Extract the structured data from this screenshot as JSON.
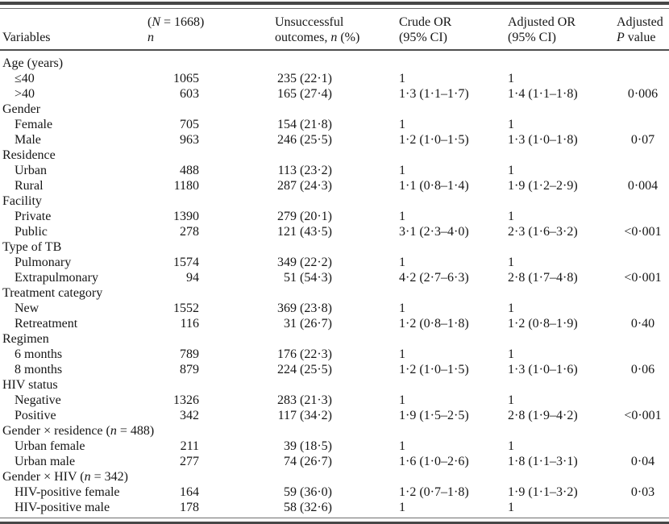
{
  "header": {
    "variables": "Variables",
    "n_total": {
      "pre": "(",
      "n_italic": "N",
      "post": " = 1668)",
      "line2": "n"
    },
    "outcomes": {
      "line1": "Unsuccessful",
      "line2_pre": "outcomes, ",
      "line2_italic": "n",
      "line2_post": " (%)"
    },
    "crude_or": {
      "line1": "Crude OR",
      "line2": "(95% CI)"
    },
    "adjusted_or": {
      "line1": "Adjusted OR",
      "line2": "(95% CI)"
    },
    "p_value": {
      "line1": "Adjusted",
      "line2_italic": "P",
      "line2_post": " value"
    }
  },
  "rows": [
    {
      "type": "section",
      "label": "Age (years)"
    },
    {
      "type": "item",
      "label": "≤40",
      "n": "1065",
      "outcomes": "235 (22·1)",
      "crude": "1",
      "adjusted": "1",
      "p": ""
    },
    {
      "type": "item",
      "label": ">40",
      "n": "603",
      "outcomes": "165 (27·4)",
      "crude": "1·3 (1·1–1·7)",
      "adjusted": "1·4 (1·1–1·8)",
      "p": "0·006"
    },
    {
      "type": "section",
      "label": "Gender"
    },
    {
      "type": "item",
      "label": "Female",
      "n": "705",
      "outcomes": "154 (21·8)",
      "crude": "1",
      "adjusted": "1",
      "p": ""
    },
    {
      "type": "item",
      "label": "Male",
      "n": "963",
      "outcomes": "246 (25·5)",
      "crude": "1·2 (1·0–1·5)",
      "adjusted": "1·3 (1·0–1·8)",
      "p": "0·07"
    },
    {
      "type": "section",
      "label": "Residence"
    },
    {
      "type": "item",
      "label": "Urban",
      "n": "488",
      "outcomes": "113 (23·2)",
      "crude": "1",
      "adjusted": "1",
      "p": ""
    },
    {
      "type": "item",
      "label": "Rural",
      "n": "1180",
      "outcomes": "287 (24·3)",
      "crude": "1·1 (0·8–1·4)",
      "adjusted": "1·9 (1·2–2·9)",
      "p": "0·004"
    },
    {
      "type": "section",
      "label": "Facility"
    },
    {
      "type": "item",
      "label": "Private",
      "n": "1390",
      "outcomes": "279 (20·1)",
      "crude": "1",
      "adjusted": "1",
      "p": ""
    },
    {
      "type": "item",
      "label": "Public",
      "n": "278",
      "outcomes": "121 (43·5)",
      "crude": "3·1 (2·3–4·0)",
      "adjusted": "2·3 (1·6–3·2)",
      "p": "<0·001"
    },
    {
      "type": "section",
      "label": "Type of TB"
    },
    {
      "type": "item",
      "label": "Pulmonary",
      "n": "1574",
      "outcomes": "349 (22·2)",
      "crude": "1",
      "adjusted": "1",
      "p": ""
    },
    {
      "type": "item",
      "label": "Extrapulmonary",
      "n": "94",
      "outcomes": "51 (54·3)",
      "crude": "4·2 (2·7–6·3)",
      "adjusted": "2·8 (1·7–4·8)",
      "p": "<0·001"
    },
    {
      "type": "section",
      "label": "Treatment category"
    },
    {
      "type": "item",
      "label": "New",
      "n": "1552",
      "outcomes": "369 (23·8)",
      "crude": "1",
      "adjusted": "1",
      "p": ""
    },
    {
      "type": "item",
      "label": "Retreatment",
      "n": "116",
      "outcomes": "31 (26·7)",
      "crude": "1·2 (0·8–1·8)",
      "adjusted": "1·2 (0·8–1·9)",
      "p": "0·40"
    },
    {
      "type": "section",
      "label": "Regimen"
    },
    {
      "type": "item",
      "label": "6 months",
      "n": "789",
      "outcomes": "176 (22·3)",
      "crude": "1",
      "adjusted": "1",
      "p": ""
    },
    {
      "type": "item",
      "label": "8 months",
      "n": "879",
      "outcomes": "224 (25·5)",
      "crude": "1·2 (1·0–1·5)",
      "adjusted": "1·3 (1·0–1·6)",
      "p": "0·06"
    },
    {
      "type": "section",
      "label": "HIV status"
    },
    {
      "type": "item",
      "label": "Negative",
      "n": "1326",
      "outcomes": "283 (21·3)",
      "crude": "1",
      "adjusted": "1",
      "p": ""
    },
    {
      "type": "item",
      "label": "Positive",
      "n": "342",
      "outcomes": "117 (34·2)",
      "crude": "1·9 (1·5–2·5)",
      "adjusted": "2·8 (1·9–4·2)",
      "p": "<0·001"
    },
    {
      "type": "section",
      "label_pre": "Gender × residence (",
      "label_it": "n",
      "label_post": " = 488)"
    },
    {
      "type": "item",
      "label": "Urban female",
      "n": "211",
      "outcomes": "39 (18·5)",
      "crude": "1",
      "adjusted": "1",
      "p": ""
    },
    {
      "type": "item",
      "label": "Urban male",
      "n": "277",
      "outcomes": "74 (26·7)",
      "crude": "1·6 (1·0–2·6)",
      "adjusted": "1·8 (1·1–3·1)",
      "p": "0·04"
    },
    {
      "type": "section",
      "label_pre": "Gender × HIV (",
      "label_it": "n",
      "label_post": " = 342)"
    },
    {
      "type": "item",
      "label": "HIV-positive female",
      "n": "164",
      "outcomes": "59 (36·0)",
      "crude": "1·2 (0·7–1·8)",
      "adjusted": "1·9 (1·1–3·2)",
      "p": "0·03"
    },
    {
      "type": "item",
      "label": "HIV-positive male",
      "n": "178",
      "outcomes": "58 (32·6)",
      "crude": "1",
      "adjusted": "1",
      "p": ""
    }
  ]
}
